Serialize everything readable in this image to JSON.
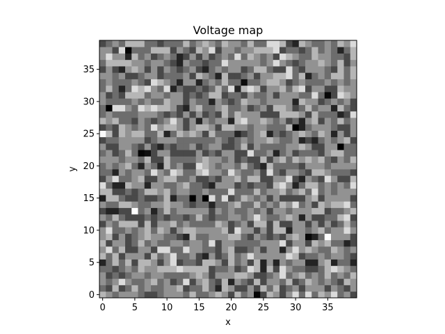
{
  "chart_data": {
    "type": "heatmap",
    "title": "Voltage map",
    "xlabel": "x",
    "ylabel": "y",
    "colormap": "gray",
    "grid": false,
    "legend": "none",
    "shape": [
      40,
      40
    ],
    "xlim": [
      -0.5,
      39.5
    ],
    "ylim": [
      -0.5,
      39.5
    ],
    "origin": "lower",
    "value_range": [
      0,
      1
    ],
    "xticks": [
      0,
      5,
      10,
      15,
      20,
      25,
      30,
      35
    ],
    "yticks": [
      0,
      5,
      10,
      15,
      20,
      25,
      30,
      35
    ],
    "quantization_levels": 8,
    "noise_seed": 424242,
    "highlights": [
      {
        "x": 4,
        "y": 38,
        "value": 0.02
      },
      {
        "x": 22,
        "y": 33,
        "value": 0.05
      },
      {
        "x": 35,
        "y": 31,
        "value": 0.03
      },
      {
        "x": 6,
        "y": 22,
        "value": 0.02
      },
      {
        "x": 7,
        "y": 22,
        "value": 0.06
      },
      {
        "x": 5,
        "y": 13,
        "value": 1.0
      },
      {
        "x": 0,
        "y": 15,
        "value": 0.12
      },
      {
        "x": 32,
        "y": 9,
        "value": 0.03
      },
      {
        "x": 24,
        "y": 0,
        "value": 0.02
      },
      {
        "x": 0,
        "y": 25,
        "value": 0.98
      }
    ]
  }
}
